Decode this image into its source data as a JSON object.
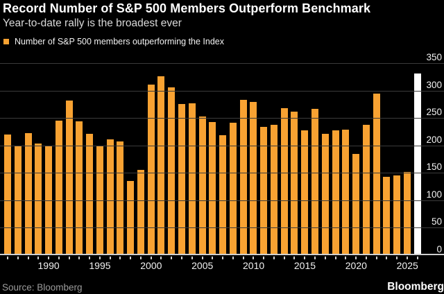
{
  "header": {
    "title": "Record Number of S&P 500 Members Outperform Benchmark",
    "subtitle": "Year-to-date rally is the broadest ever"
  },
  "footer": {
    "source": "Source: Bloomberg",
    "brand": "Bloomberg"
  },
  "colors": {
    "background": "#000000",
    "bar": "#F8A232",
    "highlight_bar": "#FFFFFF",
    "gridline": "#3B3B3B",
    "axis_line": "#CFCFCF",
    "text": "#FFFFFF",
    "muted_text": "#9C9C9C"
  },
  "chart_data": {
    "type": "bar",
    "title": "Record Number of S&P 500 Members Outperform Benchmark",
    "subtitle": "Year-to-date rally is the broadest ever",
    "legend_position": "top-left",
    "grid": "horizontal",
    "ylim": [
      0,
      350
    ],
    "y_axis_side": "right",
    "y_ticks": [
      350,
      300,
      250,
      200,
      150,
      100,
      50,
      0
    ],
    "x_ticks": [
      "1990",
      "1995",
      "2000",
      "2005",
      "2010",
      "2015",
      "2020",
      "2025"
    ],
    "series": [
      {
        "name": "Number of S&P 500 members outperforming the Index",
        "color": "#F8A232",
        "points": [
          {
            "year": "1986",
            "value": 220,
            "highlight": false
          },
          {
            "year": "1987",
            "value": 200,
            "highlight": false
          },
          {
            "year": "1988",
            "value": 222,
            "highlight": false
          },
          {
            "year": "1989",
            "value": 203,
            "highlight": false
          },
          {
            "year": "1990",
            "value": 199,
            "highlight": false
          },
          {
            "year": "1991",
            "value": 245,
            "highlight": false
          },
          {
            "year": "1992",
            "value": 282,
            "highlight": false
          },
          {
            "year": "1993",
            "value": 244,
            "highlight": false
          },
          {
            "year": "1994",
            "value": 221,
            "highlight": false
          },
          {
            "year": "1995",
            "value": 199,
            "highlight": false
          },
          {
            "year": "1996",
            "value": 211,
            "highlight": false
          },
          {
            "year": "1997",
            "value": 207,
            "highlight": false
          },
          {
            "year": "1998",
            "value": 135,
            "highlight": false
          },
          {
            "year": "1999",
            "value": 155,
            "highlight": false
          },
          {
            "year": "2000",
            "value": 311,
            "highlight": false
          },
          {
            "year": "2001",
            "value": 326,
            "highlight": false
          },
          {
            "year": "2002",
            "value": 306,
            "highlight": false
          },
          {
            "year": "2003",
            "value": 275,
            "highlight": false
          },
          {
            "year": "2004",
            "value": 277,
            "highlight": false
          },
          {
            "year": "2005",
            "value": 253,
            "highlight": false
          },
          {
            "year": "2006",
            "value": 243,
            "highlight": false
          },
          {
            "year": "2007",
            "value": 219,
            "highlight": false
          },
          {
            "year": "2008",
            "value": 241,
            "highlight": false
          },
          {
            "year": "2009",
            "value": 283,
            "highlight": false
          },
          {
            "year": "2010",
            "value": 279,
            "highlight": false
          },
          {
            "year": "2011",
            "value": 234,
            "highlight": false
          },
          {
            "year": "2012",
            "value": 238,
            "highlight": false
          },
          {
            "year": "2013",
            "value": 268,
            "highlight": false
          },
          {
            "year": "2014",
            "value": 261,
            "highlight": false
          },
          {
            "year": "2015",
            "value": 228,
            "highlight": false
          },
          {
            "year": "2016",
            "value": 267,
            "highlight": false
          },
          {
            "year": "2017",
            "value": 221,
            "highlight": false
          },
          {
            "year": "2018",
            "value": 228,
            "highlight": false
          },
          {
            "year": "2019",
            "value": 229,
            "highlight": false
          },
          {
            "year": "2020",
            "value": 185,
            "highlight": false
          },
          {
            "year": "2021",
            "value": 237,
            "highlight": false
          },
          {
            "year": "2022",
            "value": 294,
            "highlight": false
          },
          {
            "year": "2023",
            "value": 143,
            "highlight": false
          },
          {
            "year": "2024",
            "value": 145,
            "highlight": false
          },
          {
            "year": "2025",
            "value": 152,
            "highlight": false
          },
          {
            "year": "2025 YTD",
            "value": 331,
            "highlight": true
          }
        ]
      }
    ]
  }
}
